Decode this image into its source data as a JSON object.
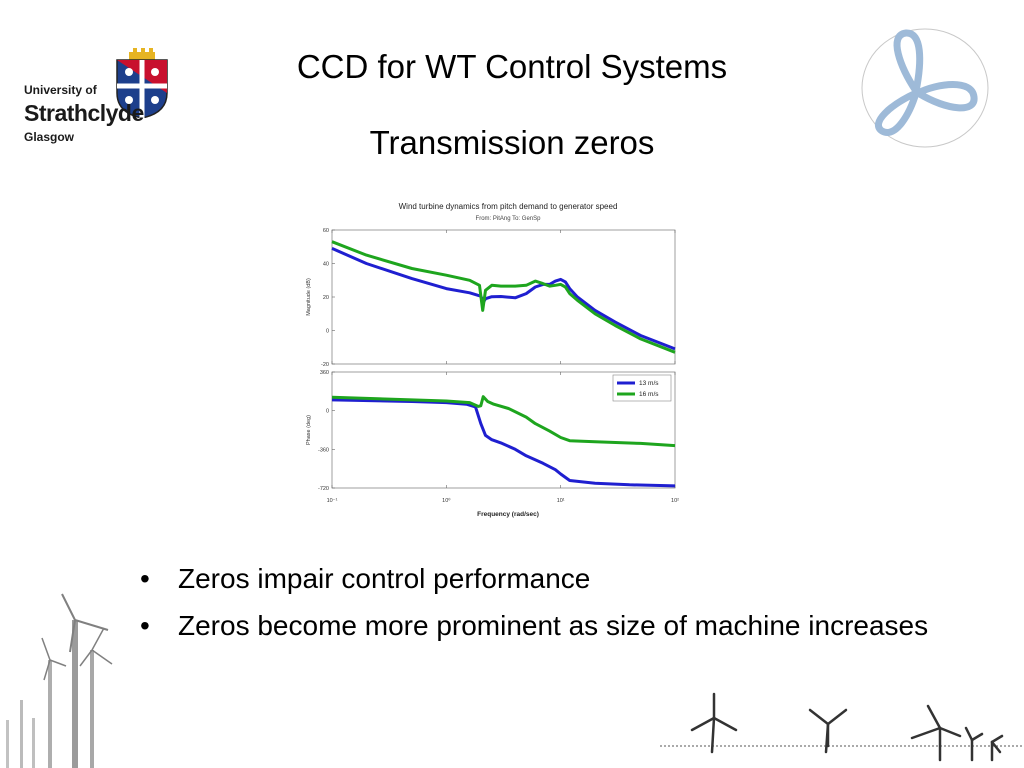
{
  "header": {
    "title": "CCD for WT Control Systems",
    "subtitle": "Transmission zeros"
  },
  "logo": {
    "line1": "University of",
    "line2": "Strathclyde",
    "line3": "Glasgow",
    "shield_colors": [
      "#c8102e",
      "#1d3f8c",
      "#e6b422"
    ]
  },
  "bullets": [
    "Zeros impair control performance",
    "Zeros become more prominent as size of machine increases"
  ],
  "chart_data": {
    "type": "line",
    "title": "Wind turbine dynamics from pitch demand to generator speed",
    "subtitle": "From: PitAng  To: GenSp",
    "xlabel": "Frequency  (rad/sec)",
    "x_scale": "log",
    "xlim": [
      0.1,
      100
    ],
    "xticks": [
      "10⁻¹",
      "10⁰",
      "10¹",
      "10²"
    ],
    "legend_position": "top-right",
    "panels": [
      {
        "ylabel": "Magnitude (dB)",
        "ylim": [
          -20,
          60
        ],
        "yticks": [
          60,
          40,
          20,
          0,
          -20
        ],
        "series": [
          {
            "name": "13 m/s",
            "color": "#1f1fd0",
            "points": [
              [
                0.1,
                49
              ],
              [
                0.2,
                40
              ],
              [
                0.5,
                31
              ],
              [
                1.0,
                25
              ],
              [
                1.6,
                22.5
              ],
              [
                2.0,
                20.5
              ],
              [
                2.12,
                17
              ],
              [
                2.2,
                19
              ],
              [
                2.5,
                20.2
              ],
              [
                3.0,
                20.3
              ],
              [
                4.0,
                19.5
              ],
              [
                5.0,
                22
              ],
              [
                6.0,
                26
              ],
              [
                7.0,
                27.5
              ],
              [
                8.0,
                27.5
              ],
              [
                9.0,
                29.5
              ],
              [
                10.0,
                30.5
              ],
              [
                11.0,
                29
              ],
              [
                12.0,
                25
              ],
              [
                14.0,
                20
              ],
              [
                20.0,
                12
              ],
              [
                30.0,
                5
              ],
              [
                50.0,
                -3
              ],
              [
                100.0,
                -11
              ]
            ]
          },
          {
            "name": "16 m/s",
            "color": "#1ea51e",
            "points": [
              [
                0.1,
                53
              ],
              [
                0.2,
                45
              ],
              [
                0.5,
                37
              ],
              [
                1.0,
                33
              ],
              [
                1.6,
                30
              ],
              [
                1.95,
                27
              ],
              [
                2.08,
                12
              ],
              [
                2.2,
                24
              ],
              [
                2.5,
                27
              ],
              [
                3.0,
                26.5
              ],
              [
                4.0,
                26.5
              ],
              [
                5.0,
                27
              ],
              [
                6.0,
                29.5
              ],
              [
                7.0,
                28
              ],
              [
                8.0,
                26.5
              ],
              [
                9.0,
                27
              ],
              [
                10.0,
                27.5
              ],
              [
                11.0,
                26
              ],
              [
                12.0,
                22
              ],
              [
                14.0,
                18
              ],
              [
                20.0,
                10
              ],
              [
                30.0,
                3
              ],
              [
                50.0,
                -5
              ],
              [
                100.0,
                -13
              ]
            ]
          }
        ]
      },
      {
        "ylabel": "Phase (deg)",
        "ylim": [
          -720,
          360
        ],
        "yticks": [
          360,
          0,
          -360,
          -720
        ],
        "series": [
          {
            "name": "13 m/s",
            "color": "#1f1fd0",
            "points": [
              [
                0.1,
                100
              ],
              [
                0.5,
                85
              ],
              [
                1.0,
                75
              ],
              [
                1.5,
                60
              ],
              [
                1.8,
                35
              ],
              [
                2.0,
                -120
              ],
              [
                2.2,
                -230
              ],
              [
                2.5,
                -270
              ],
              [
                3.0,
                -300
              ],
              [
                4.0,
                -360
              ],
              [
                5.0,
                -420
              ],
              [
                7.0,
                -490
              ],
              [
                9.0,
                -550
              ],
              [
                10.0,
                -590
              ],
              [
                12.0,
                -650
              ],
              [
                20.0,
                -675
              ],
              [
                40.0,
                -690
              ],
              [
                100.0,
                -700
              ]
            ]
          },
          {
            "name": "16 m/s",
            "color": "#1ea51e",
            "points": [
              [
                0.1,
                125
              ],
              [
                0.5,
                100
              ],
              [
                1.0,
                90
              ],
              [
                1.6,
                75
              ],
              [
                1.9,
                40
              ],
              [
                2.0,
                45
              ],
              [
                2.1,
                130
              ],
              [
                2.3,
                85
              ],
              [
                2.6,
                60
              ],
              [
                3.5,
                20
              ],
              [
                5.0,
                -60
              ],
              [
                6.0,
                -120
              ],
              [
                8.0,
                -190
              ],
              [
                10.0,
                -250
              ],
              [
                12.0,
                -280
              ],
              [
                20.0,
                -290
              ],
              [
                50.0,
                -305
              ],
              [
                100.0,
                -325
              ]
            ]
          }
        ]
      }
    ]
  }
}
